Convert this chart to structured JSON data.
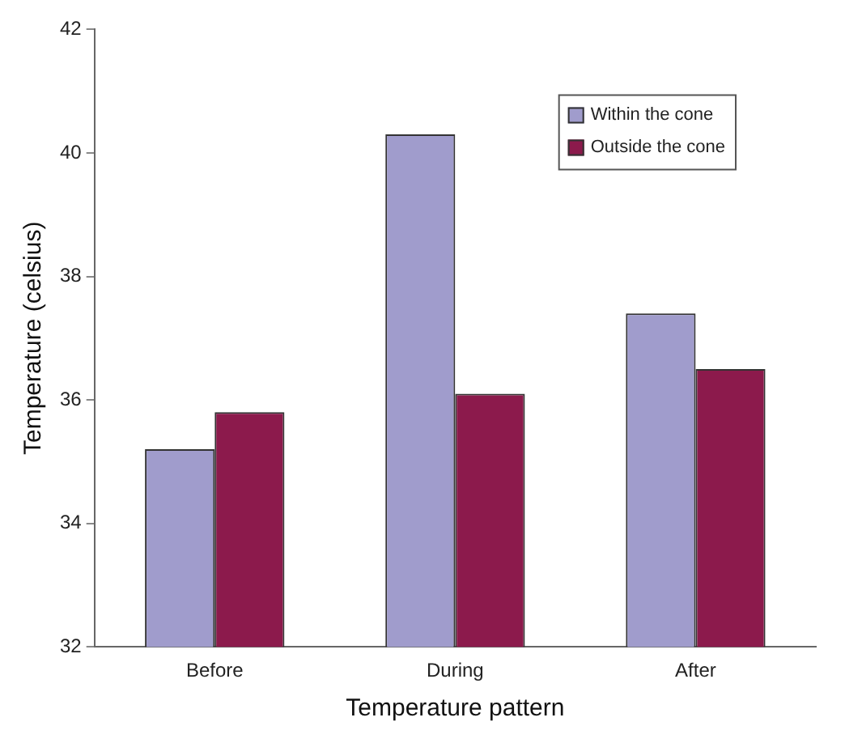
{
  "chart_data": {
    "type": "bar",
    "xlabel": "Temperature pattern",
    "ylabel": "Temperature (celsius)",
    "categories": [
      "Before",
      "During",
      "After"
    ],
    "series": [
      {
        "name": "Within the cone",
        "color": "#a09ccc",
        "values": [
          35.2,
          40.3,
          37.4
        ]
      },
      {
        "name": "Outside the cone",
        "color": "#8c1a4c",
        "values": [
          35.8,
          36.1,
          36.5
        ]
      }
    ],
    "ylim": [
      32,
      42
    ],
    "yticks": [
      32,
      34,
      36,
      38,
      40,
      42
    ],
    "grid": false,
    "legend": "top right"
  }
}
